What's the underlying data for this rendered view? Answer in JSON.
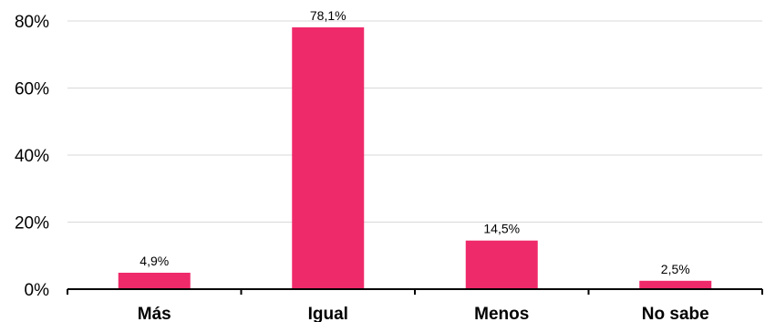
{
  "chart_data": {
    "type": "bar",
    "categories": [
      "Más",
      "Igual",
      "Menos",
      "No sabe"
    ],
    "values": [
      4.9,
      78.1,
      14.5,
      2.5
    ],
    "data_labels": [
      "4,9%",
      "78,1%",
      "14,5%",
      "2,5%"
    ],
    "y_ticks": [
      0,
      20,
      40,
      60,
      80
    ],
    "y_tick_labels": [
      "0%",
      "20%",
      "40%",
      "60%",
      "80%"
    ],
    "ylim": [
      0,
      80
    ],
    "grid": true,
    "legend": "none",
    "title": "",
    "xlabel": "",
    "ylabel": "",
    "bar_color": "#ef2a6b",
    "grid_color": "#d9d9d9",
    "axis_color": "#000000"
  }
}
